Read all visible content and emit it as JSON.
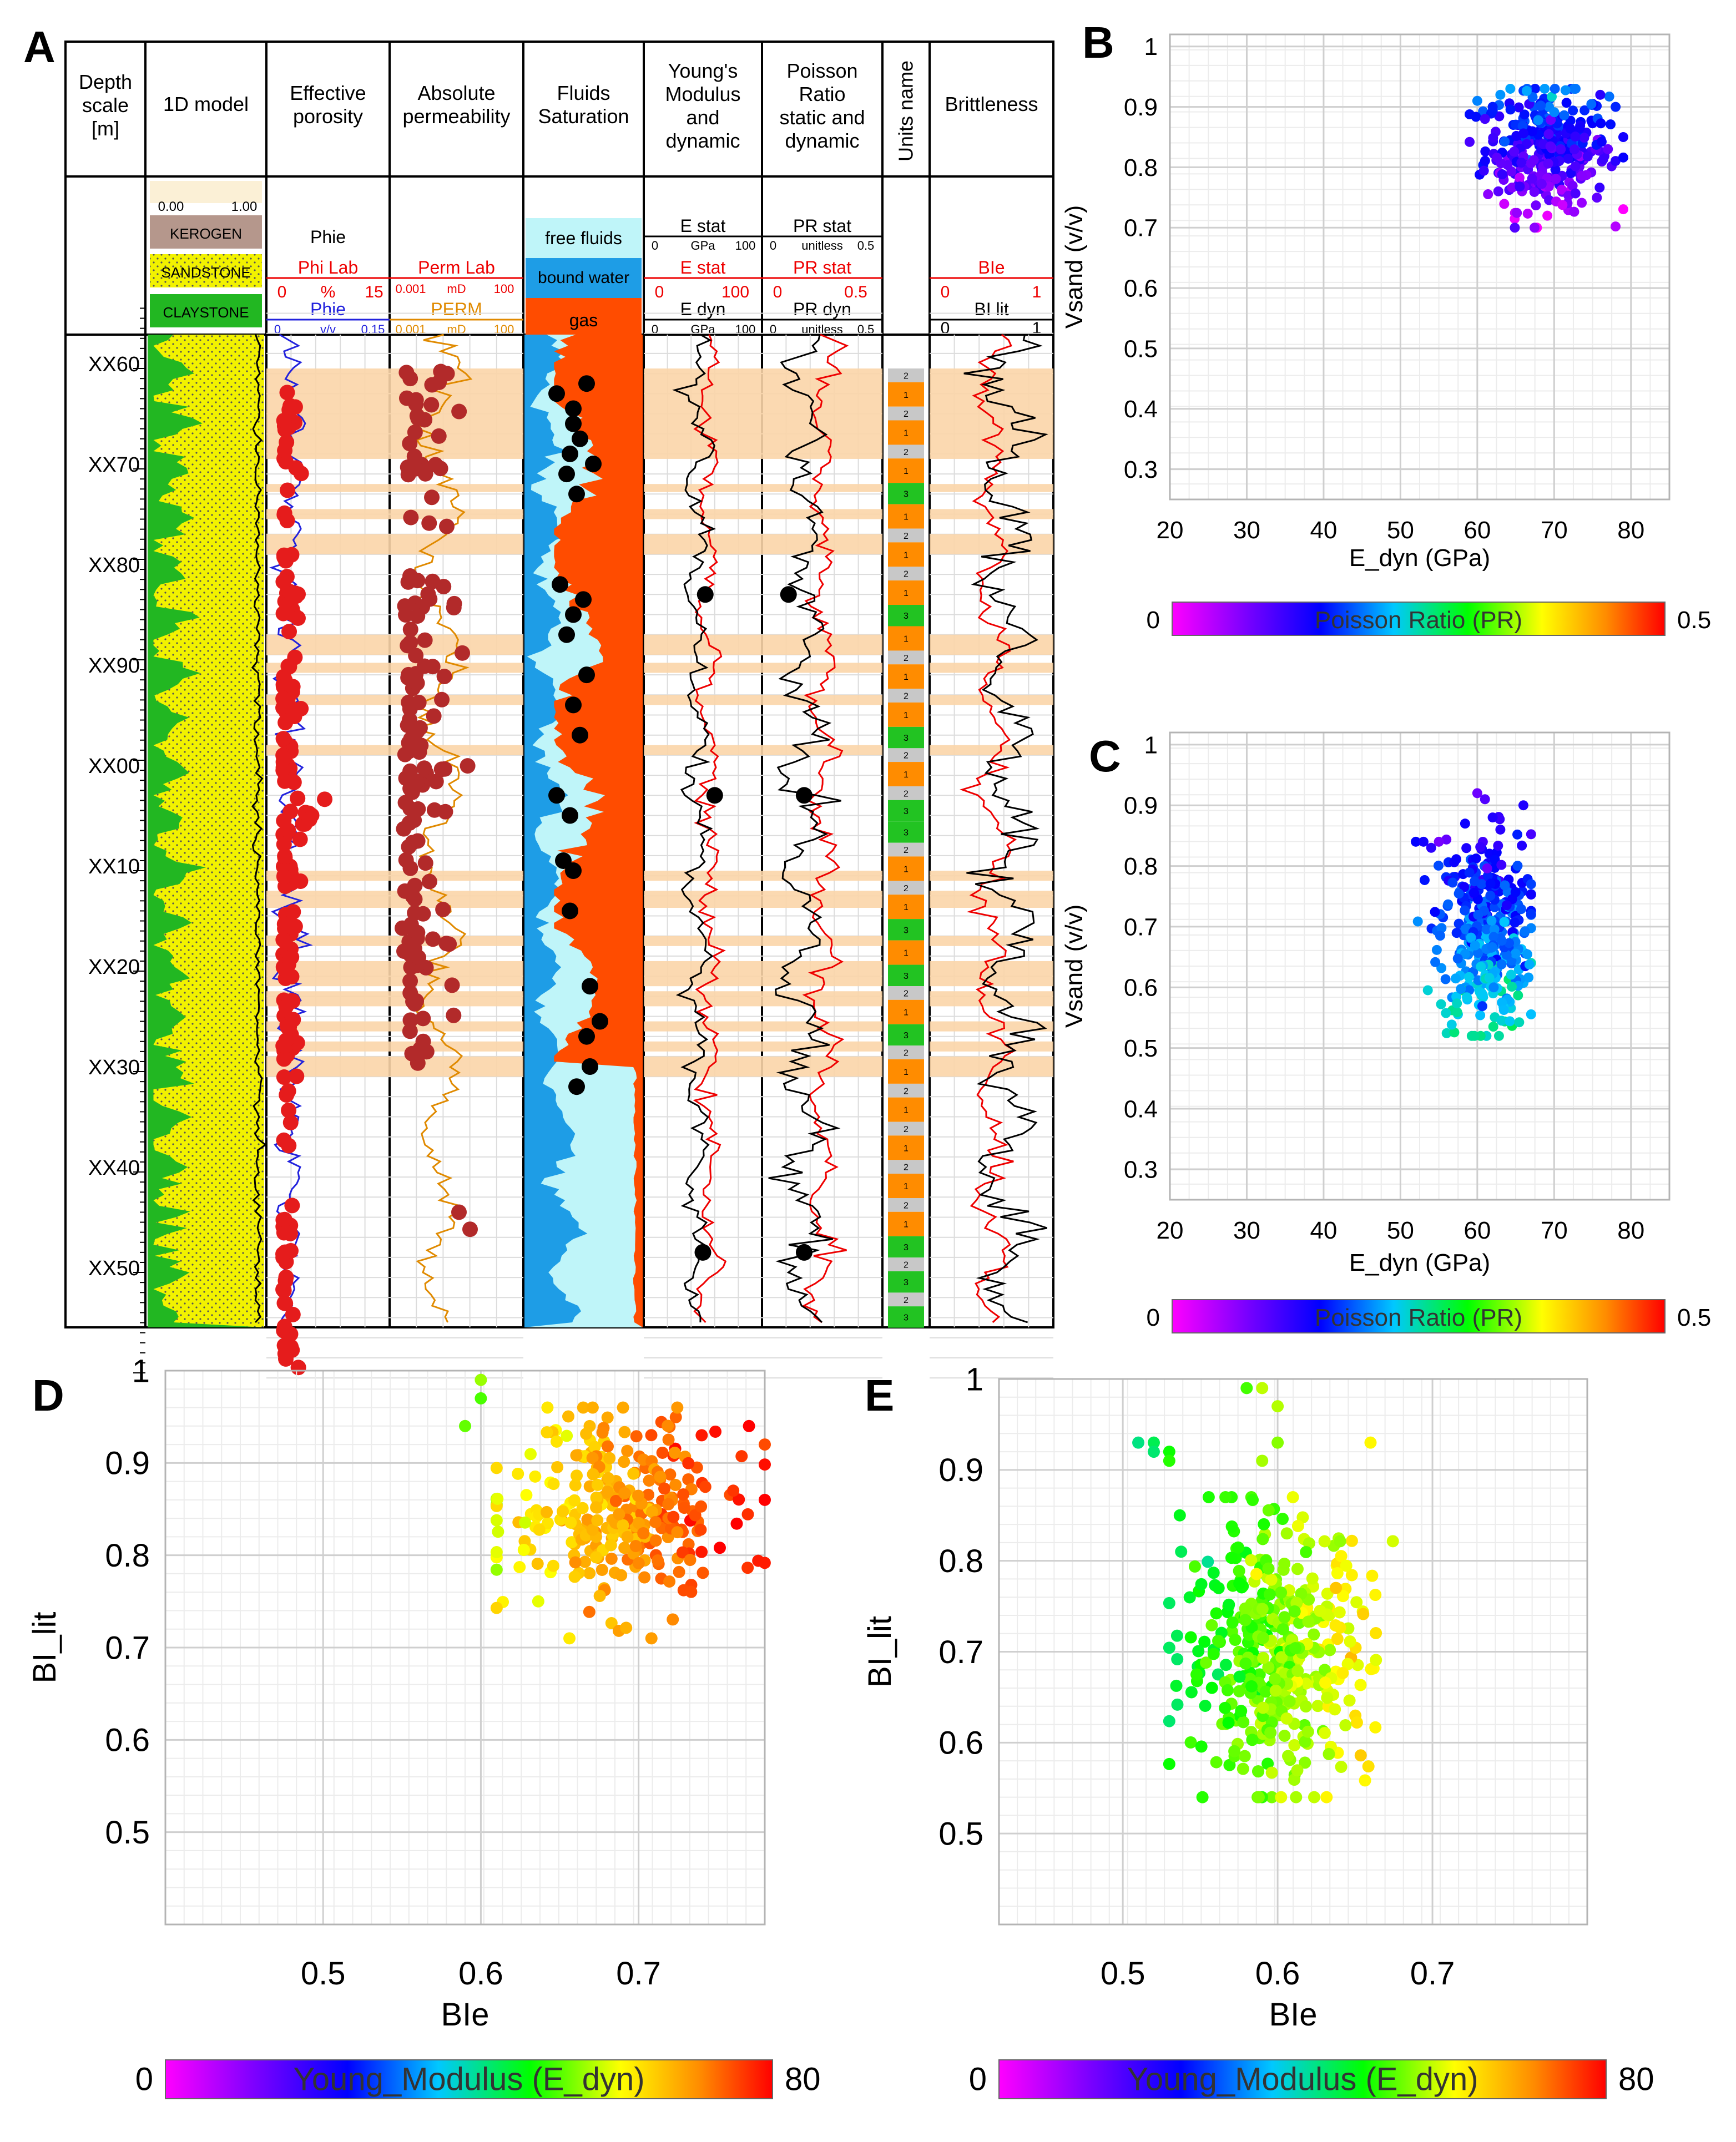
{
  "panels": {
    "a": "A",
    "b": "B",
    "c": "C",
    "d": "D",
    "e": "E"
  },
  "well_log": {
    "headers": {
      "depth": [
        "Depth",
        "scale",
        "[m]"
      ],
      "model": [
        "1D model"
      ],
      "porosity": [
        "Effective",
        "porosity"
      ],
      "permeability": [
        "Absolute",
        "permeability"
      ],
      "fluids": [
        "Fluids",
        "Saturation"
      ],
      "youngs": [
        "Young's",
        "Modulus",
        "and",
        "dynamic"
      ],
      "poisson": [
        "Poisson",
        "Ratio",
        "static and",
        "dynamic"
      ],
      "units": "Units name",
      "brittleness": "Brittleness"
    },
    "model_legend": {
      "scale_min": "0.00",
      "scale_max": "1.00",
      "kerogen": "KEROGEN",
      "sandstone": "SANDSTONE",
      "claystone": "CLAYSTONE",
      "kerogen_color": "#b5978c",
      "sandstone_color": "#f2f200",
      "claystone_color": "#22b722"
    },
    "porosity_legend": {
      "phie_title": "Phie",
      "philab": "Phi Lab",
      "phie": "Phie",
      "lab_min": "0",
      "lab_unit": "%",
      "lab_max": "15",
      "phie_min": "0",
      "phie_unit": "v/v",
      "phie_max": "0.15"
    },
    "perm_legend": {
      "permlab": "Perm Lab",
      "perm": "PERM",
      "min": "0.001",
      "unit": "mD",
      "max": "100"
    },
    "fluid_legend": {
      "free": "free fluids",
      "bound": "bound water",
      "gas": "gas",
      "free_color": "#bff5f9",
      "bound_color": "#1e9de6",
      "gas_color": "#ff4c00"
    },
    "youngs_legend": {
      "estat_black": "E stat",
      "estat_red": "E stat",
      "edyn": "E dyn",
      "min": "0",
      "unit": "GPa",
      "max": "100",
      "red_min": "0",
      "red_max": "100"
    },
    "poisson_legend": {
      "prstat_black": "PR stat",
      "prstat_red": "PR stat",
      "prdyn": "PR dyn",
      "min": "0",
      "unit": "unitless",
      "max": "0.5",
      "red_min": "0",
      "red_max": "0.5"
    },
    "brittle_legend": {
      "bie": "BIe",
      "bilit": "BI lit",
      "min": "0",
      "max": "1",
      "lit_min": "0",
      "lit_max": "1"
    },
    "depth_ticks": [
      "XX60",
      "XX70",
      "XX80",
      "XX90",
      "XX00",
      "XX10",
      "XX20",
      "XX30",
      "XX40",
      "XX50"
    ],
    "units": [
      {
        "label": "2",
        "type": "2"
      },
      {
        "label": "1",
        "type": "1"
      },
      {
        "label": "2",
        "type": "2"
      },
      {
        "label": "1",
        "type": "1"
      },
      {
        "label": "2",
        "type": "2"
      },
      {
        "label": "1",
        "type": "1"
      },
      {
        "label": "3",
        "type": "3"
      },
      {
        "label": "1",
        "type": "1"
      },
      {
        "label": "2",
        "type": "2"
      },
      {
        "label": "1",
        "type": "1"
      },
      {
        "label": "2",
        "type": "2"
      },
      {
        "label": "1",
        "type": "1"
      },
      {
        "label": "3",
        "type": "3"
      },
      {
        "label": "1",
        "type": "1"
      },
      {
        "label": "2",
        "type": "2"
      },
      {
        "label": "1",
        "type": "1"
      },
      {
        "label": "2",
        "type": "2"
      },
      {
        "label": "1",
        "type": "1"
      },
      {
        "label": "3",
        "type": "3"
      },
      {
        "label": "2",
        "type": "2"
      },
      {
        "label": "1",
        "type": "1"
      },
      {
        "label": "2",
        "type": "2"
      },
      {
        "label": "3",
        "type": "3"
      },
      {
        "label": "3",
        "type": "3"
      },
      {
        "label": "2",
        "type": "2"
      },
      {
        "label": "1",
        "type": "1"
      },
      {
        "label": "2",
        "type": "2"
      },
      {
        "label": "1",
        "type": "1"
      },
      {
        "label": "3",
        "type": "3"
      },
      {
        "label": "1",
        "type": "1"
      },
      {
        "label": "3",
        "type": "3"
      },
      {
        "label": "2",
        "type": "2"
      },
      {
        "label": "1",
        "type": "1"
      },
      {
        "label": "3",
        "type": "3"
      },
      {
        "label": "2",
        "type": "2"
      },
      {
        "label": "1",
        "type": "1"
      },
      {
        "label": "2",
        "type": "2"
      },
      {
        "label": "1",
        "type": "1"
      },
      {
        "label": "2",
        "type": "2"
      },
      {
        "label": "1",
        "type": "1"
      },
      {
        "label": "2",
        "type": "2"
      },
      {
        "label": "1",
        "type": "1"
      },
      {
        "label": "2",
        "type": "2"
      },
      {
        "label": "1",
        "type": "1"
      },
      {
        "label": "3",
        "type": "3"
      },
      {
        "label": "2",
        "type": "2"
      },
      {
        "label": "3",
        "type": "3"
      },
      {
        "label": "2",
        "type": "2"
      },
      {
        "label": "3",
        "type": "3"
      }
    ],
    "unit_colors": {
      "1": "#ff8c00",
      "2": "#c8c8c8",
      "3": "#22c322"
    },
    "highlight_color": "#fbd5a8"
  },
  "chart_data": [
    {
      "type": "scatter",
      "panel": "B",
      "xlabel": "E_dyn (GPa)",
      "ylabel": "Vsand (v/v)",
      "xlim": [
        20,
        85
      ],
      "ylim": [
        0.25,
        1.02
      ],
      "xticks": [
        "20",
        "30",
        "40",
        "50",
        "60",
        "70",
        "80"
      ],
      "yticks": [
        "0.3",
        "0.4",
        "0.5",
        "0.6",
        "0.7",
        "0.8",
        "0.9",
        "1"
      ],
      "colorbar": {
        "min_label": "0",
        "max_label": "0.5",
        "label": "Poisson Ratio (PR)"
      },
      "cluster": {
        "x_mean": 69,
        "x_sd": 4,
        "y_mean": 0.83,
        "y_sd": 0.05,
        "x_range": [
          59,
          79
        ],
        "y_range": [
          0.7,
          0.93
        ],
        "n": 320
      },
      "extra_points": [
        [
          60,
          0.91
        ],
        [
          61,
          0.88
        ],
        [
          62,
          0.9
        ],
        [
          63,
          0.92
        ],
        [
          76,
          0.92
        ],
        [
          78,
          0.9
        ],
        [
          79,
          0.85
        ],
        [
          77,
          0.83
        ]
      ]
    },
    {
      "type": "scatter",
      "panel": "C",
      "xlabel": "E_dyn (GPa)",
      "ylabel": "Vsand (v/v)",
      "xlim": [
        20,
        85
      ],
      "ylim": [
        0.25,
        1.02
      ],
      "xticks": [
        "20",
        "30",
        "40",
        "50",
        "60",
        "70",
        "80"
      ],
      "yticks": [
        "0.3",
        "0.4",
        "0.5",
        "0.6",
        "0.7",
        "0.8",
        "0.9",
        "1"
      ],
      "colorbar": {
        "min_label": "0",
        "max_label": "0.5",
        "label": "Poisson Ratio (PR)"
      },
      "cluster": {
        "x_mean": 61,
        "x_sd": 3,
        "y_mean": 0.69,
        "y_sd": 0.08,
        "x_range": [
          52,
          67
        ],
        "y_range": [
          0.52,
          0.91
        ],
        "n": 360
      },
      "extra_points": [
        [
          52,
          0.84
        ],
        [
          53,
          0.84
        ],
        [
          54,
          0.83
        ],
        [
          55,
          0.84
        ],
        [
          60,
          0.92
        ],
        [
          61,
          0.91
        ],
        [
          62,
          0.88
        ],
        [
          63,
          0.86
        ],
        [
          66,
          0.9
        ]
      ]
    },
    {
      "type": "scatter",
      "panel": "D",
      "xlabel": "BIe",
      "ylabel": "BI_lit",
      "xlim": [
        0.4,
        0.78
      ],
      "ylim": [
        0.4,
        1.0
      ],
      "xticks": [
        "0.5",
        "0.6",
        "0.7"
      ],
      "yticks": [
        "0.5",
        "0.6",
        "0.7",
        "0.8",
        "0.9",
        "1"
      ],
      "colorbar": {
        "min_label": "0",
        "max_label": "80",
        "label": "Young_Modulus (E_dyn)"
      },
      "cluster": {
        "x_mean": 0.685,
        "x_sd": 0.035,
        "y_mean": 0.85,
        "y_sd": 0.05,
        "x_range": [
          0.61,
          0.78
        ],
        "y_range": [
          0.71,
          0.96
        ],
        "n": 300
      },
      "extra_points": [
        [
          0.6,
          0.99
        ],
        [
          0.6,
          0.97
        ],
        [
          0.59,
          0.94
        ],
        [
          0.77,
          0.94
        ],
        [
          0.78,
          0.92
        ],
        [
          0.78,
          0.86
        ],
        [
          0.76,
          0.87
        ],
        [
          0.74,
          0.93
        ]
      ]
    },
    {
      "type": "scatter",
      "panel": "E",
      "xlabel": "BIe",
      "ylabel": "BI_lit",
      "xlim": [
        0.42,
        0.8
      ],
      "ylim": [
        0.4,
        1.0
      ],
      "xticks": [
        "0.5",
        "0.6",
        "0.7"
      ],
      "yticks": [
        "0.5",
        "0.6",
        "0.7",
        "0.8",
        "0.9",
        "1"
      ],
      "colorbar": {
        "min_label": "0",
        "max_label": "80",
        "label": "Young_Modulus (E_dyn)"
      },
      "cluster": {
        "x_mean": 0.6,
        "x_sd": 0.03,
        "y_mean": 0.7,
        "y_sd": 0.07,
        "x_range": [
          0.53,
          0.68
        ],
        "y_range": [
          0.54,
          0.87
        ],
        "n": 420
      },
      "extra_points": [
        [
          0.51,
          0.93
        ],
        [
          0.52,
          0.93
        ],
        [
          0.53,
          0.92
        ],
        [
          0.53,
          0.91
        ],
        [
          0.52,
          0.92
        ],
        [
          0.58,
          0.99
        ],
        [
          0.59,
          0.99
        ],
        [
          0.6,
          0.97
        ],
        [
          0.6,
          0.93
        ],
        [
          0.59,
          0.91
        ],
        [
          0.66,
          0.93
        ]
      ]
    }
  ]
}
